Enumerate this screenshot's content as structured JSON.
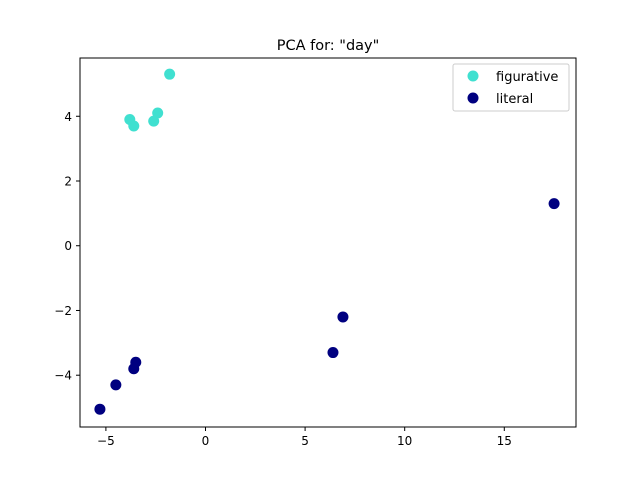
{
  "chart_data": {
    "type": "scatter",
    "title": "PCA for: \"day\"",
    "xlabel": "",
    "ylabel": "",
    "xlim": [
      -6.3,
      18.6
    ],
    "ylim": [
      -5.6,
      5.8
    ],
    "xticks": [
      -5,
      0,
      5,
      10,
      15
    ],
    "yticks": [
      -4,
      -2,
      0,
      2,
      4
    ],
    "xtick_labels": [
      "−5",
      "0",
      "5",
      "10",
      "15"
    ],
    "ytick_labels": [
      "−4",
      "−2",
      "0",
      "2",
      "4"
    ],
    "grid": false,
    "legend": "top-right",
    "series": [
      {
        "name": "figurative",
        "color": "#40e0d0",
        "points": [
          {
            "x": -1.8,
            "y": 5.3
          },
          {
            "x": -2.4,
            "y": 4.1
          },
          {
            "x": -2.6,
            "y": 3.85
          },
          {
            "x": -3.8,
            "y": 3.9
          },
          {
            "x": -3.6,
            "y": 3.7
          }
        ]
      },
      {
        "name": "literal",
        "color": "#000080",
        "points": [
          {
            "x": 17.5,
            "y": 1.3
          },
          {
            "x": 6.9,
            "y": -2.2
          },
          {
            "x": 6.4,
            "y": -3.3
          },
          {
            "x": -3.5,
            "y": -3.6
          },
          {
            "x": -3.6,
            "y": -3.8
          },
          {
            "x": -4.5,
            "y": -4.3
          },
          {
            "x": -5.3,
            "y": -5.05
          }
        ]
      }
    ]
  }
}
